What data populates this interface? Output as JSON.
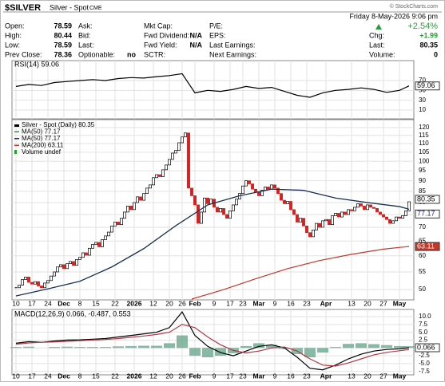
{
  "header": {
    "symbol": "$SILVER",
    "name": "Silver - Spot",
    "exchange": "CME",
    "copyright": "© StockCharts.com",
    "date": "Friday  8-May-2026  9:06 pm",
    "change_pct": "+2.54%"
  },
  "quote": {
    "rows": [
      [
        {
          "label": "Open:",
          "value": 78.59
        },
        {
          "label": "Ask:"
        },
        {
          "label": "Mkt Cap:"
        },
        {
          "label": "P/E:"
        }
      ],
      [
        {
          "label": "High:",
          "value": 80.44
        },
        {
          "label": "Bid:"
        },
        {
          "label": "Fwd Dividend:",
          "value": "N/A"
        },
        {
          "label": "EPS:"
        }
      ],
      [
        {
          "label": "Low:",
          "value": 78.59
        },
        {
          "label": "Last:"
        },
        {
          "label": "Fwd Yield:",
          "value": "N/A"
        },
        {
          "label": "Last Earnings:"
        }
      ],
      [
        {
          "label": "Prev Close:",
          "value": 78.36
        },
        {
          "label": "Optionable:",
          "value": "no"
        },
        {
          "label": "SCTR:"
        },
        {
          "label": "Next Earnings:"
        }
      ]
    ],
    "right": [
      {
        "label": "Chg:",
        "value": "+1.99"
      },
      {
        "label": "Last:",
        "value": 80.35
      },
      {
        "label": "Volume:",
        "value": 0
      }
    ]
  },
  "chart_data": [
    {
      "type": "line",
      "ylim": [
        -7.8,
        110.5
      ],
      "yticks": [
        10,
        30,
        50,
        70
      ],
      "series": [
        {
          "label": "RSI(14) 59.06",
          "color": "#000000",
          "x": [
            0,
            4,
            8,
            12,
            16,
            20,
            24,
            28,
            32,
            36,
            40,
            44,
            48,
            52,
            56,
            60,
            64,
            68,
            72,
            76,
            80,
            84,
            88,
            92,
            96,
            100,
            104,
            108,
            112,
            116,
            120,
            123
          ],
          "values": [
            58,
            62,
            60,
            66,
            68,
            70,
            72,
            70,
            74,
            76,
            75,
            78,
            80,
            84,
            45,
            50,
            48,
            52,
            58,
            54,
            56,
            48,
            40,
            36,
            45,
            50,
            52,
            55,
            52,
            46,
            50,
            59.06
          ]
        }
      ]
    },
    {
      "type": "candlestick",
      "log": true,
      "grid": true,
      "xlim": [
        -1.25,
        124.5
      ],
      "xticks": [
        {
          "value": 0,
          "label": "10"
        },
        {
          "value": 5,
          "label": "17"
        },
        {
          "value": 10,
          "label": "24"
        },
        {
          "value": 15,
          "label": "Dec"
        },
        {
          "value": 20,
          "label": "8"
        },
        {
          "value": 25,
          "label": "15"
        },
        {
          "value": 31,
          "label": "22"
        },
        {
          "value": 37,
          "label": "2026"
        },
        {
          "value": 43,
          "label": "12"
        },
        {
          "value": 48,
          "label": "20"
        },
        {
          "value": 52,
          "label": "26"
        },
        {
          "value": 56,
          "label": "Feb"
        },
        {
          "value": 62,
          "label": "9"
        },
        {
          "value": 67,
          "label": "17"
        },
        {
          "value": 71,
          "label": "23"
        },
        {
          "value": 76,
          "label": "Mar"
        },
        {
          "value": 81,
          "label": "9"
        },
        {
          "value": 86,
          "label": "16"
        },
        {
          "value": 91,
          "label": "23"
        },
        {
          "value": 97,
          "label": "Apr"
        },
        {
          "value": 105,
          "label": "13"
        },
        {
          "value": 110,
          "label": "20"
        },
        {
          "value": 115,
          "label": "27"
        },
        {
          "value": 120,
          "label": "May"
        }
      ],
      "ylim": [
        47.3,
        125.2
      ],
      "yticks": [
        50,
        55,
        60,
        65,
        70,
        75,
        80,
        85,
        90,
        95,
        100,
        105,
        110,
        115,
        120
      ],
      "series": [
        {
          "label": "Silver - Spot (Daily) 80.35",
          "color": "#000000",
          "down_color": "#d62020",
          "values": [
            50.5,
            51.2,
            52.8,
            53.5,
            52.0,
            51.5,
            52.2,
            51.0,
            50.5,
            51.8,
            52.5,
            53.8,
            55.0,
            56.5,
            57.2,
            56.0,
            57.5,
            58.2,
            57.0,
            58.8,
            59.5,
            61.0,
            60.2,
            62.5,
            63.8,
            64.5,
            63.0,
            65.5,
            66.8,
            68.2,
            70.5,
            72.0,
            71.0,
            73.5,
            76.0,
            78.5,
            77.0,
            80.0,
            82.5,
            81.0,
            84.0,
            86.5,
            88.0,
            91.5,
            93.0,
            92.0,
            95.5,
            98.0,
            101.0,
            104.5,
            106.0,
            110.5,
            114.0,
            116.5,
            86.5,
            83.0,
            79.0,
            71.5,
            76.0,
            82.0,
            79.5,
            81.5,
            78.0,
            76.0,
            77.5,
            75.0,
            73.5,
            76.5,
            79.0,
            81.5,
            84.0,
            87.5,
            90.0,
            88.5,
            86.0,
            84.5,
            83.0,
            85.5,
            87.0,
            86.0,
            88.0,
            86.5,
            84.0,
            81.0,
            79.5,
            80.5,
            77.0,
            75.0,
            72.0,
            73.5,
            70.5,
            68.0,
            66.5,
            69.0,
            71.5,
            70.0,
            72.5,
            73.0,
            71.0,
            74.5,
            75.5,
            74.0,
            76.0,
            75.0,
            77.0,
            76.5,
            78.0,
            79.5,
            78.5,
            77.0,
            79.0,
            78.0,
            77.5,
            76.0,
            75.0,
            74.0,
            73.0,
            71.5,
            72.5,
            74.0,
            73.5,
            74.5,
            76.5,
            80.35
          ]
        },
        {
          "label": "MA(50) 77.17",
          "color": "#2ca02c",
          "x": [
            0,
            10,
            20,
            30,
            40,
            50,
            60,
            70,
            80,
            90,
            100,
            110,
            120,
            123
          ],
          "values": [
            48.3,
            50.2,
            52.3,
            56.5,
            62.4,
            70.6,
            79.0,
            83.0,
            86.0,
            85.5,
            82.0,
            80.0,
            78.3,
            77.17
          ]
        },
        {
          "label": "MA(50) 77.17",
          "color": "#1f2a5c",
          "x": [
            0,
            10,
            20,
            30,
            40,
            50,
            60,
            70,
            80,
            90,
            100,
            110,
            120,
            123
          ],
          "values": [
            48.3,
            50.2,
            52.3,
            56.5,
            62.4,
            70.6,
            79.0,
            83.0,
            86.0,
            85.5,
            82.0,
            80.0,
            78.3,
            77.17
          ]
        },
        {
          "label": "MA(200) 63.11",
          "color": "#c0392b",
          "x": [
            55,
            65,
            75,
            85,
            95,
            105,
            115,
            123
          ],
          "values": [
            47.5,
            50.0,
            53.0,
            56.0,
            58.5,
            60.5,
            62.2,
            63.11
          ]
        }
      ],
      "legend_extra": "Volume undef"
    },
    {
      "type": "macd",
      "label": "MACD(12,26,9) 0.066, -0.487, 0.553",
      "ylim": [
        -8.6,
        12.3
      ],
      "yticks": [
        {
          "value": 10,
          "label": "10.0"
        },
        7.5,
        {
          "value": 5,
          "label": "5.0"
        },
        2.5,
        {
          "value": 0,
          "label": "0.0"
        },
        -2.5,
        {
          "value": -5,
          "label": "-5.0"
        },
        -7.5
      ],
      "series": [
        {
          "color": "#000000",
          "x": [
            0,
            4,
            8,
            12,
            16,
            20,
            24,
            28,
            32,
            36,
            40,
            44,
            48,
            52,
            56,
            60,
            64,
            68,
            72,
            76,
            80,
            84,
            88,
            92,
            96,
            100,
            104,
            108,
            112,
            116,
            120,
            123
          ],
          "values": [
            1.5,
            2.0,
            1.8,
            2.2,
            2.5,
            2.6,
            2.8,
            3.0,
            3.5,
            4.0,
            4.5,
            5.0,
            6.5,
            11.5,
            4.0,
            0.5,
            -1.5,
            -2.5,
            -1.0,
            0.5,
            1.0,
            0.0,
            -3.0,
            -6.5,
            -7.0,
            -5.5,
            -3.5,
            -2.0,
            -1.0,
            -0.5,
            -0.3,
            0.066
          ]
        },
        {
          "color": "#b03a48",
          "x": [
            0,
            4,
            8,
            12,
            16,
            20,
            24,
            28,
            32,
            36,
            40,
            44,
            48,
            52,
            56,
            60,
            64,
            68,
            72,
            76,
            80,
            84,
            88,
            92,
            96,
            100,
            104,
            108,
            112,
            116,
            120,
            123
          ],
          "values": [
            1.2,
            1.6,
            1.8,
            1.9,
            2.1,
            2.3,
            2.5,
            2.7,
            3.0,
            3.4,
            3.8,
            4.3,
            5.0,
            7.5,
            6.5,
            3.5,
            1.0,
            -0.8,
            -1.6,
            -1.0,
            0.0,
            0.3,
            -1.0,
            -3.5,
            -5.5,
            -5.8,
            -4.8,
            -3.5,
            -2.2,
            -1.4,
            -0.9,
            -0.487
          ]
        },
        {
          "color": "#6aa88f",
          "bars": true,
          "x": [
            0,
            4,
            8,
            12,
            16,
            20,
            24,
            28,
            32,
            36,
            40,
            44,
            48,
            52,
            56,
            60,
            64,
            68,
            72,
            76,
            80,
            84,
            88,
            92,
            96,
            100,
            104,
            108,
            112,
            116,
            120,
            123
          ],
          "values": [
            0.3,
            0.4,
            0.0,
            0.3,
            0.4,
            0.3,
            0.3,
            0.3,
            0.5,
            0.6,
            0.7,
            0.7,
            1.5,
            4.0,
            -2.5,
            -3.0,
            -2.5,
            -1.7,
            0.6,
            1.5,
            1.0,
            -0.3,
            -2.0,
            -3.0,
            -1.5,
            0.3,
            1.3,
            1.5,
            1.2,
            0.9,
            0.6,
            0.553
          ]
        }
      ]
    }
  ]
}
